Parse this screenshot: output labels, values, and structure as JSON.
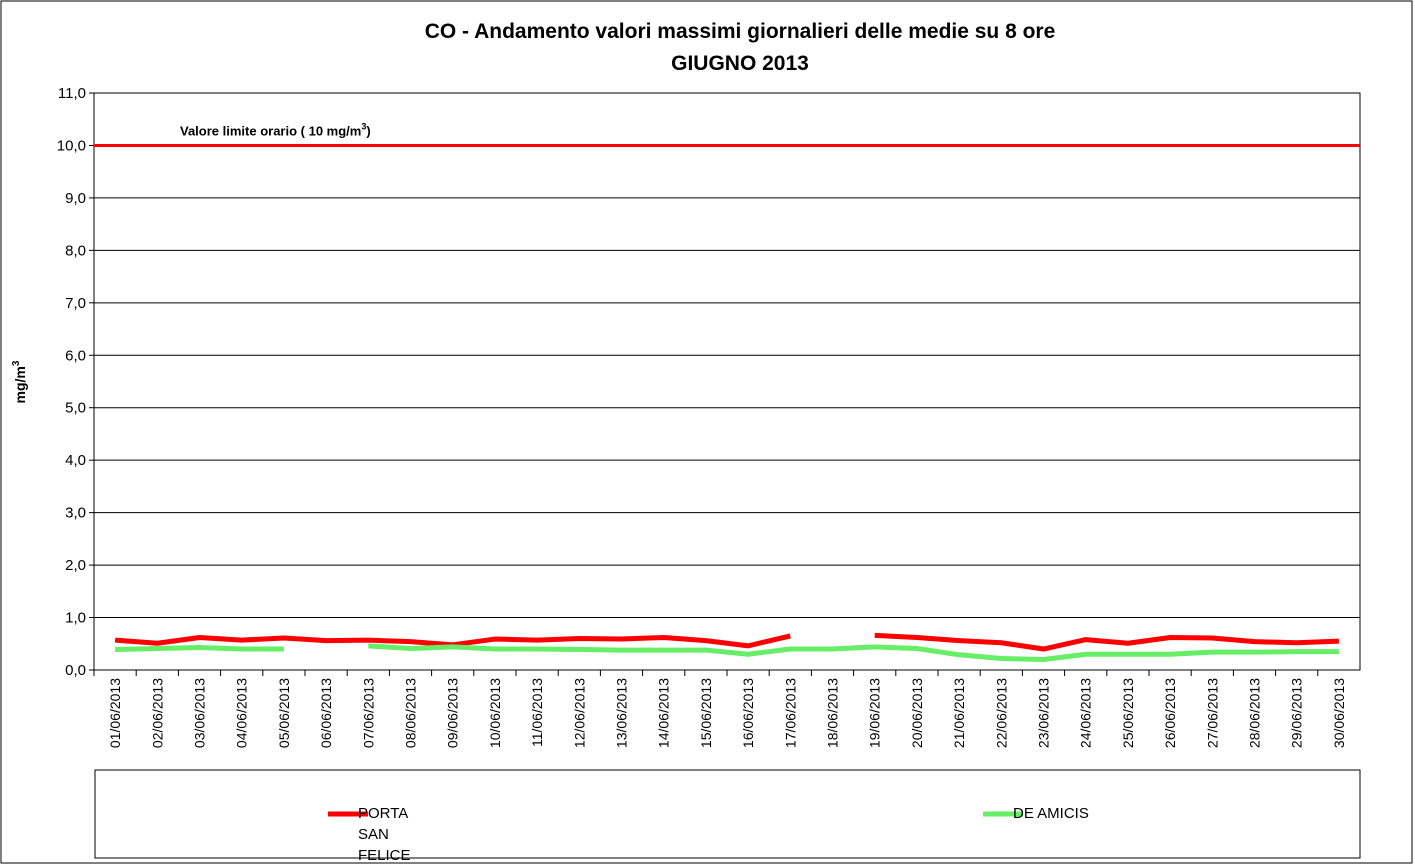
{
  "chart_data": {
    "type": "line",
    "title": "CO - Andamento valori massimi giornalieri delle medie su 8 ore",
    "subtitle": "GIUGNO 2013",
    "y_label": {
      "text": "mg/m",
      "sup": "3"
    },
    "annotation": {
      "text": "Valore limite orario ( 10 mg/m",
      "sup": "3",
      "end": ")"
    },
    "limit_line": {
      "value": 10,
      "color": "#ff0000"
    },
    "categories": [
      "01/06/2013",
      "02/06/2013",
      "03/06/2013",
      "04/06/2013",
      "05/06/2013",
      "06/06/2013",
      "07/06/2013",
      "08/06/2013",
      "09/06/2013",
      "10/06/2013",
      "11/06/2013",
      "12/06/2013",
      "13/06/2013",
      "14/06/2013",
      "15/06/2013",
      "16/06/2013",
      "17/06/2013",
      "18/06/2013",
      "19/06/2013",
      "20/06/2013",
      "21/06/2013",
      "22/06/2013",
      "23/06/2013",
      "24/06/2013",
      "25/06/2013",
      "26/06/2013",
      "27/06/2013",
      "28/06/2013",
      "29/06/2013",
      "30/06/2013"
    ],
    "series": [
      {
        "name": "PORTA SAN FELICE",
        "color": "#ff0000",
        "values": [
          0.57,
          0.51,
          0.62,
          0.57,
          0.61,
          0.56,
          0.57,
          0.54,
          0.48,
          0.59,
          0.57,
          0.6,
          0.59,
          0.62,
          0.56,
          0.46,
          0.65,
          null,
          0.66,
          0.62,
          0.56,
          0.52,
          0.4,
          0.58,
          0.51,
          0.62,
          0.61,
          0.54,
          0.52,
          0.55
        ]
      },
      {
        "name": "DE AMICIS",
        "color": "#66ee66",
        "values": [
          0.39,
          0.41,
          0.43,
          0.4,
          0.4,
          null,
          0.46,
          0.41,
          0.44,
          0.4,
          0.4,
          0.39,
          0.38,
          0.38,
          0.38,
          0.3,
          0.4,
          0.4,
          0.44,
          0.41,
          0.29,
          0.22,
          0.2,
          0.3,
          0.3,
          0.3,
          0.34,
          0.34,
          0.35,
          0.35
        ]
      }
    ],
    "ylim": [
      0,
      11
    ],
    "yticks": [
      {
        "value": 0,
        "label": "0,0"
      },
      {
        "value": 1,
        "label": "1,0"
      },
      {
        "value": 2,
        "label": "2,0"
      },
      {
        "value": 3,
        "label": "3,0"
      },
      {
        "value": 4,
        "label": "4,0"
      },
      {
        "value": 5,
        "label": "5,0"
      },
      {
        "value": 6,
        "label": "6,0"
      },
      {
        "value": 7,
        "label": "7,0"
      },
      {
        "value": 8,
        "label": "8,0"
      },
      {
        "value": 9,
        "label": "9,0"
      },
      {
        "value": 10,
        "label": "10,0"
      },
      {
        "value": 11,
        "label": "11,0"
      }
    ],
    "grid": true
  }
}
